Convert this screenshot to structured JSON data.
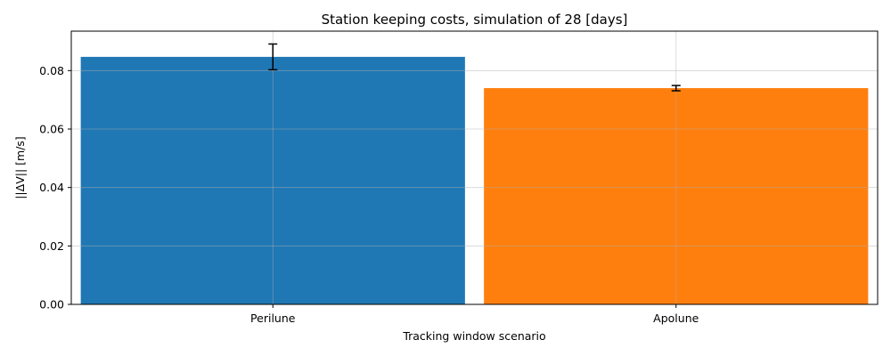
{
  "chart_data": {
    "type": "bar",
    "title": "Station keeping costs, simulation of 28 [days]",
    "xlabel": "Tracking window scenario",
    "ylabel": "||ΔV|| [m/s]",
    "categories": [
      "Perilune",
      "Apolune"
    ],
    "values": [
      0.0847,
      0.074
    ],
    "error": [
      0.0044,
      0.0009
    ],
    "colors": [
      "#1f77b4",
      "#ff7f0e"
    ],
    "ylim": [
      0,
      0.0935
    ],
    "yticks": [
      0.0,
      0.02,
      0.04,
      0.06,
      0.08
    ],
    "ytick_labels": [
      "0.00",
      "0.02",
      "0.04",
      "0.06",
      "0.08"
    ],
    "grid": true
  }
}
